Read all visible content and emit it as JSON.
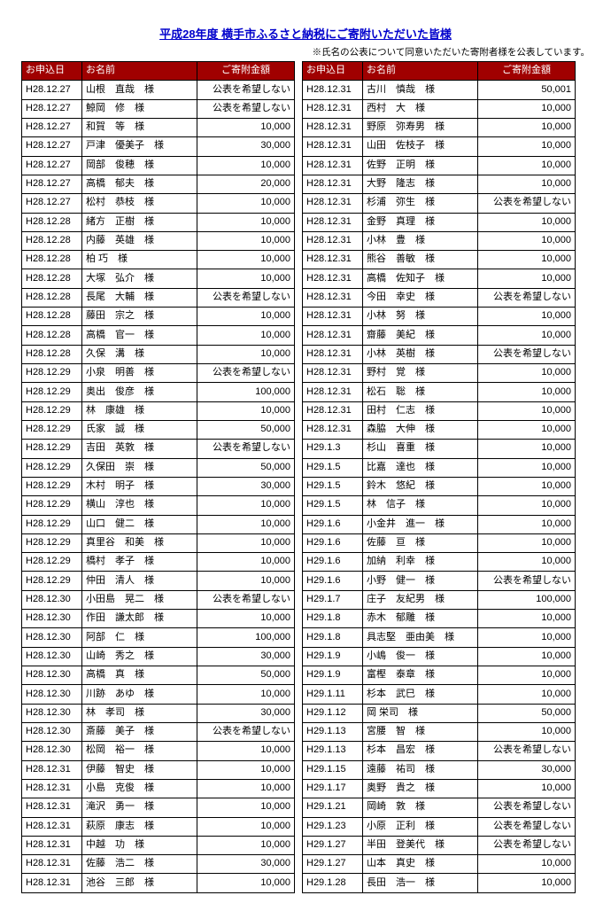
{
  "title": "平成28年度 横手市ふるさと納税にご寄附いただいた皆様",
  "note": "※氏名の公表について同意いただいた寄附者様を公表しています。",
  "headers": {
    "date": "お申込日",
    "name": "お名前",
    "amount": "ご寄附金額"
  },
  "left": [
    {
      "d": "H28.12.27",
      "n": "山根　直哉　様",
      "a": "公表を希望しない"
    },
    {
      "d": "H28.12.27",
      "n": "鯨岡　修　様",
      "a": "公表を希望しない"
    },
    {
      "d": "H28.12.27",
      "n": "和賀　等　様",
      "a": "10,000"
    },
    {
      "d": "H28.12.27",
      "n": "戸津　優美子　様",
      "a": "30,000"
    },
    {
      "d": "H28.12.27",
      "n": "岡部　俊穂　様",
      "a": "10,000"
    },
    {
      "d": "H28.12.27",
      "n": "高橋　郁夫　様",
      "a": "20,000"
    },
    {
      "d": "H28.12.27",
      "n": "松村　恭枝　様",
      "a": "10,000"
    },
    {
      "d": "H28.12.28",
      "n": "緒方　正樹　様",
      "a": "10,000"
    },
    {
      "d": "H28.12.28",
      "n": "内藤　英雄　様",
      "a": "10,000"
    },
    {
      "d": "H28.12.28",
      "n": "柏 巧　様",
      "a": "10,000"
    },
    {
      "d": "H28.12.28",
      "n": "大塚　弘介　様",
      "a": "10,000"
    },
    {
      "d": "H28.12.28",
      "n": "長尾　大輔　様",
      "a": "公表を希望しない"
    },
    {
      "d": "H28.12.28",
      "n": "藤田　宗之　様",
      "a": "10,000"
    },
    {
      "d": "H28.12.28",
      "n": "高橋　官一　様",
      "a": "10,000"
    },
    {
      "d": "H28.12.28",
      "n": "久保　溝　様",
      "a": "10,000"
    },
    {
      "d": "H28.12.29",
      "n": "小泉　明善　様",
      "a": "公表を希望しない"
    },
    {
      "d": "H28.12.29",
      "n": "奥出　俊彦　様",
      "a": "100,000"
    },
    {
      "d": "H28.12.29",
      "n": "林　康雄　様",
      "a": "10,000"
    },
    {
      "d": "H28.12.29",
      "n": "氏家　誠　様",
      "a": "50,000"
    },
    {
      "d": "H28.12.29",
      "n": "吉田　英敦　様",
      "a": "公表を希望しない"
    },
    {
      "d": "H28.12.29",
      "n": "久保田　崇　様",
      "a": "50,000"
    },
    {
      "d": "H28.12.29",
      "n": "木村　明子　様",
      "a": "30,000"
    },
    {
      "d": "H28.12.29",
      "n": "横山　淳也　様",
      "a": "10,000"
    },
    {
      "d": "H28.12.29",
      "n": "山口　健二　様",
      "a": "10,000"
    },
    {
      "d": "H28.12.29",
      "n": "真里谷　和美　様",
      "a": "10,000"
    },
    {
      "d": "H28.12.29",
      "n": "橋村　孝子　様",
      "a": "10,000"
    },
    {
      "d": "H28.12.29",
      "n": "仲田　清人　様",
      "a": "10,000"
    },
    {
      "d": "H28.12.30",
      "n": "小田島　晃二　様",
      "a": "公表を希望しない"
    },
    {
      "d": "H28.12.30",
      "n": "作田　謙太郎　様",
      "a": "10,000"
    },
    {
      "d": "H28.12.30",
      "n": "阿部　仁　様",
      "a": "100,000"
    },
    {
      "d": "H28.12.30",
      "n": "山崎　秀之　様",
      "a": "30,000"
    },
    {
      "d": "H28.12.30",
      "n": "高橋　真　様",
      "a": "50,000"
    },
    {
      "d": "H28.12.30",
      "n": "川跡　あゆ　様",
      "a": "10,000"
    },
    {
      "d": "H28.12.30",
      "n": "林　孝司　様",
      "a": "30,000"
    },
    {
      "d": "H28.12.30",
      "n": "斎藤　美子　様",
      "a": "公表を希望しない"
    },
    {
      "d": "H28.12.30",
      "n": "松岡　裕一　様",
      "a": "10,000"
    },
    {
      "d": "H28.12.31",
      "n": "伊藤　智史　様",
      "a": "10,000"
    },
    {
      "d": "H28.12.31",
      "n": "小島　克俊　様",
      "a": "10,000"
    },
    {
      "d": "H28.12.31",
      "n": "滝沢　勇一　様",
      "a": "10,000"
    },
    {
      "d": "H28.12.31",
      "n": "萩原　康志　様",
      "a": "10,000"
    },
    {
      "d": "H28.12.31",
      "n": "中越　功　様",
      "a": "10,000"
    },
    {
      "d": "H28.12.31",
      "n": "佐藤　浩二　様",
      "a": "30,000"
    },
    {
      "d": "H28.12.31",
      "n": "池谷　三郎　様",
      "a": "10,000"
    }
  ],
  "right": [
    {
      "d": "H28.12.31",
      "n": "古川　慎哉　様",
      "a": "50,001"
    },
    {
      "d": "H28.12.31",
      "n": "西村　大　様",
      "a": "10,000"
    },
    {
      "d": "H28.12.31",
      "n": "野原　弥寿男　様",
      "a": "10,000"
    },
    {
      "d": "H28.12.31",
      "n": "山田　佐枝子　様",
      "a": "10,000"
    },
    {
      "d": "H28.12.31",
      "n": "佐野　正明　様",
      "a": "10,000"
    },
    {
      "d": "H28.12.31",
      "n": "大野　隆志　様",
      "a": "10,000"
    },
    {
      "d": "H28.12.31",
      "n": "杉浦　弥生　様",
      "a": "公表を希望しない"
    },
    {
      "d": "H28.12.31",
      "n": "金野　真理　様",
      "a": "10,000"
    },
    {
      "d": "H28.12.31",
      "n": "小林　豊　様",
      "a": "10,000"
    },
    {
      "d": "H28.12.31",
      "n": "熊谷　善敏　様",
      "a": "10,000"
    },
    {
      "d": "H28.12.31",
      "n": "高橋　佐知子　様",
      "a": "10,000"
    },
    {
      "d": "H28.12.31",
      "n": "今田　幸史　様",
      "a": "公表を希望しない"
    },
    {
      "d": "H28.12.31",
      "n": "小林　努　様",
      "a": "10,000"
    },
    {
      "d": "H28.12.31",
      "n": "齋藤　美紀　様",
      "a": "10,000"
    },
    {
      "d": "H28.12.31",
      "n": "小林　英樹　様",
      "a": "公表を希望しない"
    },
    {
      "d": "H28.12.31",
      "n": "野村　覚　様",
      "a": "10,000"
    },
    {
      "d": "H28.12.31",
      "n": "松石　聡　様",
      "a": "10,000"
    },
    {
      "d": "H28.12.31",
      "n": "田村　仁志　様",
      "a": "10,000"
    },
    {
      "d": "H28.12.31",
      "n": "森脇　大伸　様",
      "a": "10,000"
    },
    {
      "d": "H29.1.3",
      "n": "杉山　喜重　様",
      "a": "10,000"
    },
    {
      "d": "H29.1.5",
      "n": "比嘉　達也　様",
      "a": "10,000"
    },
    {
      "d": "H29.1.5",
      "n": "鈴木　悠紀　様",
      "a": "10,000"
    },
    {
      "d": "H29.1.5",
      "n": "林　信子　様",
      "a": "10,000"
    },
    {
      "d": "H29.1.6",
      "n": "小金井　進一　様",
      "a": "10,000"
    },
    {
      "d": "H29.1.6",
      "n": "佐藤　亘　様",
      "a": "10,000"
    },
    {
      "d": "H29.1.6",
      "n": "加納　利幸　様",
      "a": "10,000"
    },
    {
      "d": "H29.1.6",
      "n": "小野　健一　様",
      "a": "公表を希望しない"
    },
    {
      "d": "H29.1.7",
      "n": "庄子　友紀男　様",
      "a": "100,000"
    },
    {
      "d": "H29.1.8",
      "n": "赤木　郁雕　様",
      "a": "10,000"
    },
    {
      "d": "H29.1.8",
      "n": "具志堅　亜由美　様",
      "a": "10,000"
    },
    {
      "d": "H29.1.9",
      "n": "小嶋　俊一　様",
      "a": "10,000"
    },
    {
      "d": "H29.1.9",
      "n": "富樫　泰章　様",
      "a": "10,000"
    },
    {
      "d": "H29.1.11",
      "n": "杉本　武巳　様",
      "a": "10,000"
    },
    {
      "d": "H29.1.12",
      "n": "岡 栄司　様",
      "a": "50,000"
    },
    {
      "d": "H29.1.13",
      "n": "宮腰　智　様",
      "a": "10,000"
    },
    {
      "d": "H29.1.13",
      "n": "杉本　昌宏　様",
      "a": "公表を希望しない"
    },
    {
      "d": "H29.1.15",
      "n": "遠藤　祐司　様",
      "a": "30,000"
    },
    {
      "d": "H29.1.17",
      "n": "奥野　貴之　様",
      "a": "10,000"
    },
    {
      "d": "H29.1.21",
      "n": "岡崎　敦　様",
      "a": "公表を希望しない"
    },
    {
      "d": "H29.1.23",
      "n": "小原　正利　様",
      "a": "公表を希望しない"
    },
    {
      "d": "H29.1.27",
      "n": "半田　登美代　様",
      "a": "公表を希望しない"
    },
    {
      "d": "H29.1.27",
      "n": "山本　真史　様",
      "a": "10,000"
    },
    {
      "d": "H29.1.28",
      "n": "長田　浩一　様",
      "a": "10,000"
    }
  ]
}
